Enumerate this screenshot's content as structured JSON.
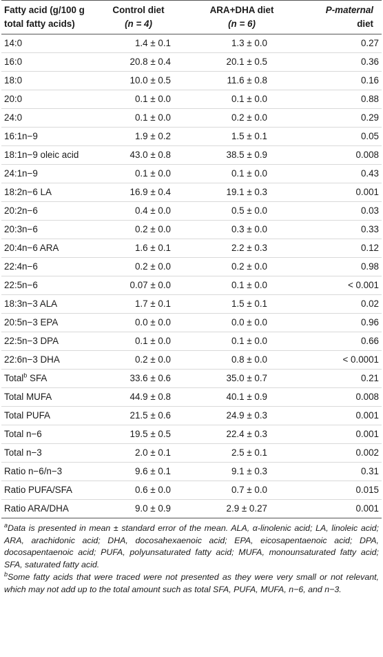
{
  "table": {
    "headers": {
      "col1": "Fatty acid (g/100 g total fatty acids)",
      "col2_line1": "Control diet",
      "col2_line2": "(n = 4)",
      "col3_line1": "ARA+DHA diet",
      "col3_line2": "(n = 6)",
      "col4_line1": "P-maternal",
      "col4_line2": "diet"
    },
    "rows": [
      {
        "name": "14:0",
        "control": "1.4 ± 0.1",
        "aradha": "1.3 ± 0.0",
        "p": "0.27"
      },
      {
        "name": "16:0",
        "control": "20.8 ± 0.4",
        "aradha": "20.1 ± 0.5",
        "p": "0.36"
      },
      {
        "name": "18:0",
        "control": "10.0 ± 0.5",
        "aradha": "11.6 ± 0.8",
        "p": "0.16"
      },
      {
        "name": "20:0",
        "control": "0.1 ± 0.0",
        "aradha": "0.1 ± 0.0",
        "p": "0.88"
      },
      {
        "name": "24:0",
        "control": "0.1 ± 0.0",
        "aradha": "0.2 ± 0.0",
        "p": "0.29"
      },
      {
        "name": "16:1n−9",
        "control": "1.9 ± 0.2",
        "aradha": "1.5 ± 0.1",
        "p": "0.05"
      },
      {
        "name": "18:1n−9 oleic acid",
        "control": "43.0 ± 0.8",
        "aradha": "38.5 ± 0.9",
        "p": "0.008"
      },
      {
        "name": "24:1n−9",
        "control": "0.1 ± 0.0",
        "aradha": "0.1 ± 0.0",
        "p": "0.43"
      },
      {
        "name": "18:2n−6 LA",
        "control": "16.9 ± 0.4",
        "aradha": "19.1 ± 0.3",
        "p": "0.001"
      },
      {
        "name": "20:2n−6",
        "control": "0.4 ± 0.0",
        "aradha": "0.5 ± 0.0",
        "p": "0.03"
      },
      {
        "name": "20:3n−6",
        "control": "0.2 ± 0.0",
        "aradha": "0.3 ± 0.0",
        "p": "0.33"
      },
      {
        "name": "20:4n−6 ARA",
        "control": "1.6 ± 0.1",
        "aradha": "2.2 ± 0.3",
        "p": "0.12"
      },
      {
        "name": "22:4n−6",
        "control": "0.2 ± 0.0",
        "aradha": "0.2 ± 0.0",
        "p": "0.98"
      },
      {
        "name": "22:5n−6",
        "control": "0.07 ± 0.0",
        "aradha": "0.1 ± 0.0",
        "p": "< 0.001"
      },
      {
        "name": "18:3n−3 ALA",
        "control": "1.7 ± 0.1",
        "aradha": "1.5 ± 0.1",
        "p": "0.02"
      },
      {
        "name": "20:5n−3 EPA",
        "control": "0.0 ± 0.0",
        "aradha": "0.0 ± 0.0",
        "p": "0.96"
      },
      {
        "name": "22:5n−3 DPA",
        "control": "0.1 ± 0.0",
        "aradha": "0.1 ± 0.0",
        "p": "0.66"
      },
      {
        "name": "22:6n−3 DHA",
        "control": "0.2 ± 0.0",
        "aradha": "0.8 ± 0.0",
        "p": "< 0.0001"
      },
      {
        "name": "Total",
        "sup": "b",
        "name_suffix": " SFA",
        "control": "33.6 ± 0.6",
        "aradha": "35.0 ± 0.7",
        "p": "0.21"
      },
      {
        "name": "Total MUFA",
        "control": "44.9 ± 0.8",
        "aradha": "40.1 ± 0.9",
        "p": "0.008"
      },
      {
        "name": "Total PUFA",
        "control": "21.5 ± 0.6",
        "aradha": "24.9 ± 0.3",
        "p": "0.001"
      },
      {
        "name": "Total n−6",
        "control": "19.5 ± 0.5",
        "aradha": "22.4 ± 0.3",
        "p": "0.001"
      },
      {
        "name": "Total n−3",
        "control": "2.0 ± 0.1",
        "aradha": "2.5 ± 0.1",
        "p": "0.002"
      },
      {
        "name": "Ratio n−6/n−3",
        "control": "9.6 ± 0.1",
        "aradha": "9.1 ± 0.3",
        "p": "0.31"
      },
      {
        "name": "Ratio PUFA/SFA",
        "control": "0.6 ± 0.0",
        "aradha": "0.7 ± 0.0",
        "p": "0.015"
      },
      {
        "name": "Ratio ARA/DHA",
        "control": "9.0 ± 0.9",
        "aradha": "2.9 ± 0.27",
        "p": "0.001"
      }
    ]
  },
  "footnotes": [
    {
      "mark": "a",
      "text": "Data is presented in mean ± standard error of the mean. ALA, α-linolenic acid; LA, linoleic acid; ARA, arachidonic acid; DHA, docosahexaenoic acid; EPA, eicosapentaenoic acid; DPA, docosapentaenoic acid; PUFA, polyunsaturated fatty acid; MUFA, monounsaturated fatty acid; SFA, saturated fatty acid."
    },
    {
      "mark": "b",
      "text": "Some fatty acids that were traced were not presented as they were very small or not relevant, which may not add up to the total amount such as total SFA, PUFA, MUFA, n−6, and n−3."
    }
  ]
}
